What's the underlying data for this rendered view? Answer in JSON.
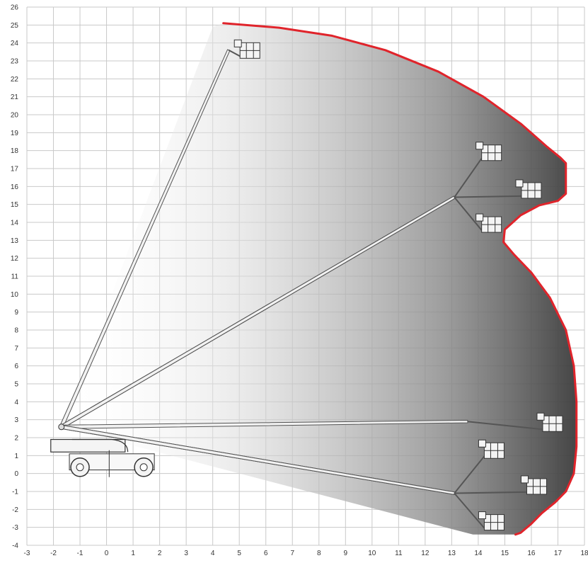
{
  "diagram": {
    "x_axis": {
      "min": -3,
      "max": 18,
      "ticks": [
        -3,
        -2,
        -1,
        0,
        1,
        2,
        3,
        4,
        5,
        6,
        7,
        8,
        9,
        10,
        11,
        12,
        13,
        14,
        15,
        16,
        17,
        18
      ]
    },
    "y_axis": {
      "min": -4,
      "max": 26,
      "ticks": [
        -4,
        -3,
        -2,
        -1,
        0,
        1,
        2,
        3,
        4,
        5,
        6,
        7,
        8,
        9,
        10,
        11,
        12,
        13,
        14,
        15,
        16,
        17,
        18,
        19,
        20,
        21,
        22,
        23,
        24,
        25,
        26
      ]
    },
    "grid": true,
    "colors": {
      "grid": "#c9c9c9",
      "envelope_outline": "#e0242b",
      "boom": "#555555",
      "envelope_shade_dark": "#3c3c3c"
    },
    "envelope_outline": [
      [
        4.4,
        25.1
      ],
      [
        6.5,
        24.85
      ],
      [
        8.5,
        24.4
      ],
      [
        10.5,
        23.6
      ],
      [
        12.5,
        22.4
      ],
      [
        14.2,
        21.0
      ],
      [
        15.6,
        19.5
      ],
      [
        16.6,
        18.2
      ],
      [
        17.1,
        17.6
      ],
      [
        17.3,
        17.3
      ],
      [
        17.3,
        15.6
      ],
      [
        17.0,
        15.2
      ],
      [
        16.3,
        14.95
      ],
      [
        15.6,
        14.4
      ],
      [
        15.0,
        13.6
      ],
      [
        14.95,
        12.9
      ],
      [
        15.35,
        12.2
      ],
      [
        16.0,
        11.2
      ],
      [
        16.7,
        9.8
      ],
      [
        17.3,
        8.0
      ],
      [
        17.6,
        6.0
      ],
      [
        17.7,
        4.0
      ],
      [
        17.7,
        1.5
      ],
      [
        17.6,
        0.0
      ],
      [
        17.3,
        -1.0
      ],
      [
        16.9,
        -1.6
      ],
      [
        16.4,
        -2.2
      ],
      [
        16.0,
        -2.8
      ],
      [
        15.6,
        -3.3
      ],
      [
        15.4,
        -3.4
      ]
    ],
    "booms": [
      {
        "from": [
          -1.7,
          2.6
        ],
        "to": [
          4.6,
          23.6
        ],
        "platform": [
          5.4,
          23.5
        ]
      },
      {
        "from": [
          -1.7,
          2.6
        ],
        "to": [
          13.1,
          15.4
        ],
        "platform": [
          14.5,
          17.8
        ]
      },
      {
        "from": [
          -1.7,
          2.6
        ],
        "to": [
          13.1,
          15.4
        ],
        "platform": [
          16.0,
          15.7
        ]
      },
      {
        "from": [
          -1.7,
          2.6
        ],
        "to": [
          13.1,
          15.4
        ],
        "platform": [
          14.5,
          13.8
        ]
      },
      {
        "from": [
          -1.7,
          2.6
        ],
        "to": [
          13.6,
          2.9
        ],
        "platform": [
          16.8,
          2.7
        ]
      },
      {
        "from": [
          -1.7,
          2.6
        ],
        "to": [
          13.1,
          -1.1
        ],
        "platform": [
          14.6,
          1.2
        ]
      },
      {
        "from": [
          -1.7,
          2.6
        ],
        "to": [
          13.1,
          -1.1
        ],
        "platform": [
          16.2,
          -0.8
        ]
      },
      {
        "from": [
          -1.7,
          2.6
        ],
        "to": [
          13.1,
          -1.1
        ],
        "platform": [
          14.6,
          -2.8
        ]
      }
    ]
  }
}
